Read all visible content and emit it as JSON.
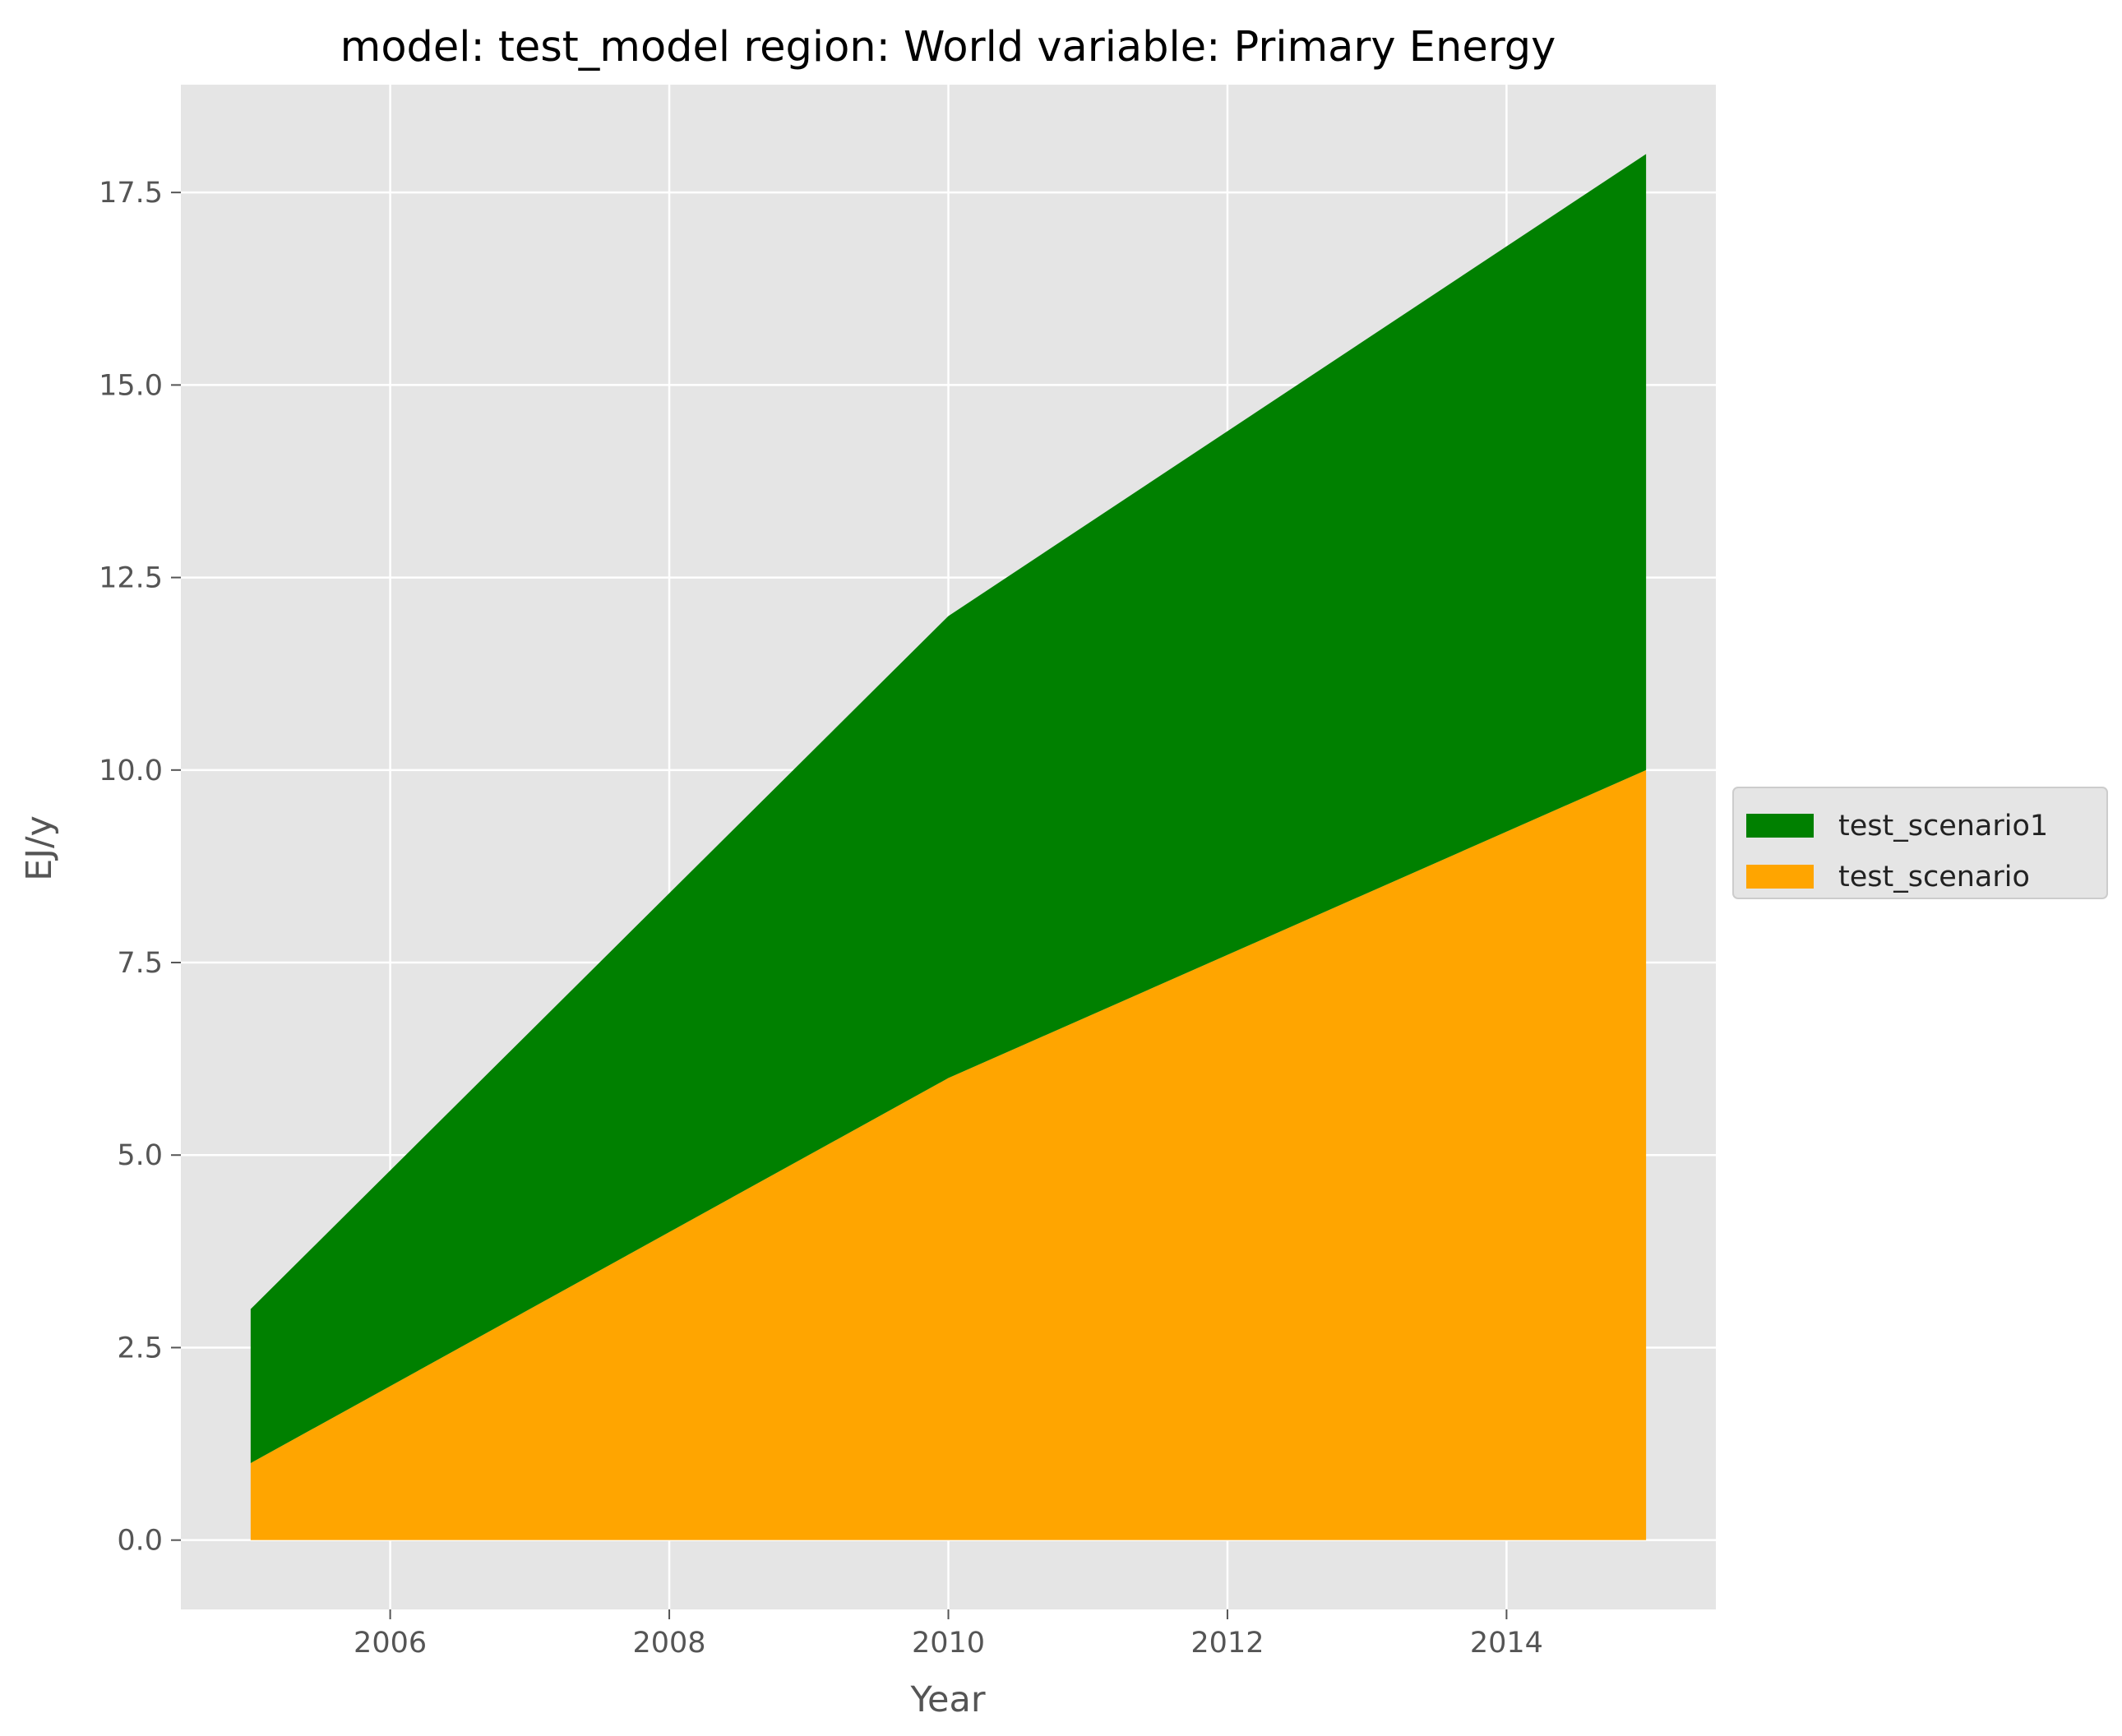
{
  "chart_data": {
    "type": "area",
    "stacked": true,
    "title": "model: test_model region: World variable: Primary Energy",
    "xlabel": "Year",
    "ylabel": "EJ/y",
    "x": [
      2005,
      2010,
      2015
    ],
    "xlim": [
      2004.5,
      2015.5
    ],
    "ylim": [
      -0.9,
      18.9
    ],
    "xticks": [
      2006,
      2008,
      2010,
      2012,
      2014
    ],
    "yticks": [
      0.0,
      2.5,
      5.0,
      7.5,
      10.0,
      12.5,
      15.0,
      17.5
    ],
    "ytick_labels": [
      "0.0",
      "2.5",
      "5.0",
      "7.5",
      "10.0",
      "12.5",
      "15.0",
      "17.5"
    ],
    "series": [
      {
        "name": "test_scenario",
        "values": [
          1,
          6,
          10
        ],
        "color": "#ffa500"
      },
      {
        "name": "test_scenario1",
        "values": [
          2,
          6,
          8
        ],
        "color": "#008000"
      }
    ],
    "legend_order": [
      "test_scenario1",
      "test_scenario"
    ],
    "legend_position": "right-center",
    "grid": true,
    "plot_background": "#e5e5e5",
    "grid_color": "#ffffff"
  }
}
